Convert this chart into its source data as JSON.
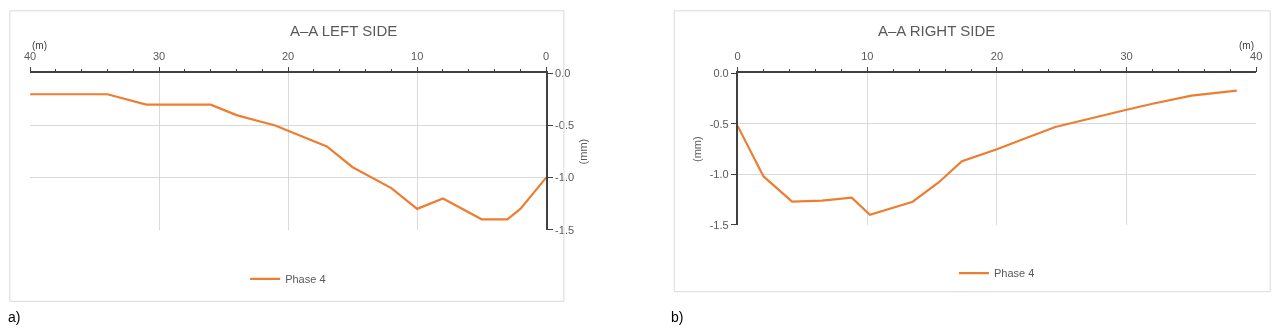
{
  "chart_data": [
    {
      "type": "line",
      "title": "A–A LEFT SIDE",
      "xlabel": "(m)",
      "ylabel": "(mm)",
      "annotations": [
        "a)"
      ],
      "x": [
        40,
        34,
        31,
        26,
        24,
        21,
        17,
        15,
        12,
        10,
        8,
        5,
        3,
        2,
        0
      ],
      "series": [
        {
          "name": "Phase 4",
          "color": "#ed7d31",
          "values": [
            -0.2,
            -0.2,
            -0.3,
            -0.3,
            -0.4,
            -0.5,
            -0.7,
            -0.9,
            -1.1,
            -1.3,
            -1.2,
            -1.4,
            -1.4,
            -1.3,
            -1.0
          ]
        }
      ],
      "xlim": [
        40,
        0
      ],
      "xticks": [
        40,
        30,
        20,
        10,
        0
      ],
      "ylim": [
        -1.5,
        0
      ],
      "yticks": [
        {
          "value": 0,
          "label": "0.0"
        },
        {
          "value": -0.5,
          "label": "-0.5"
        },
        {
          "value": -1,
          "label": "-1.0"
        },
        {
          "value": -1.5,
          "label": "-1.5"
        }
      ],
      "grid": true,
      "legend": "bottom"
    },
    {
      "type": "line",
      "title": "A–A RIGHT SIDE",
      "xlabel": "(m)",
      "ylabel": "(mm)",
      "annotations": [
        "b)"
      ],
      "x": [
        0,
        2,
        4.2,
        6.5,
        8.8,
        10.2,
        13.5,
        15.5,
        17.3,
        20,
        24.5,
        30,
        32,
        35,
        38.5
      ],
      "series": [
        {
          "name": "Phase 4",
          "color": "#ed7d31",
          "values": [
            -0.52,
            -1.02,
            -1.27,
            -1.26,
            -1.23,
            -1.4,
            -1.27,
            -1.08,
            -0.87,
            -0.75,
            -0.53,
            -0.36,
            -0.3,
            -0.22,
            -0.17
          ]
        }
      ],
      "xlim": [
        0,
        40
      ],
      "xticks": [
        0,
        10,
        20,
        30,
        40
      ],
      "ylim": [
        -1.5,
        0
      ],
      "yticks": [
        {
          "value": 0,
          "label": "0.0"
        },
        {
          "value": -0.5,
          "label": "-0.5"
        },
        {
          "value": -1,
          "label": "-1.0"
        },
        {
          "value": -1.5,
          "label": "-1.5"
        }
      ],
      "grid": true,
      "legend": "bottom"
    }
  ]
}
